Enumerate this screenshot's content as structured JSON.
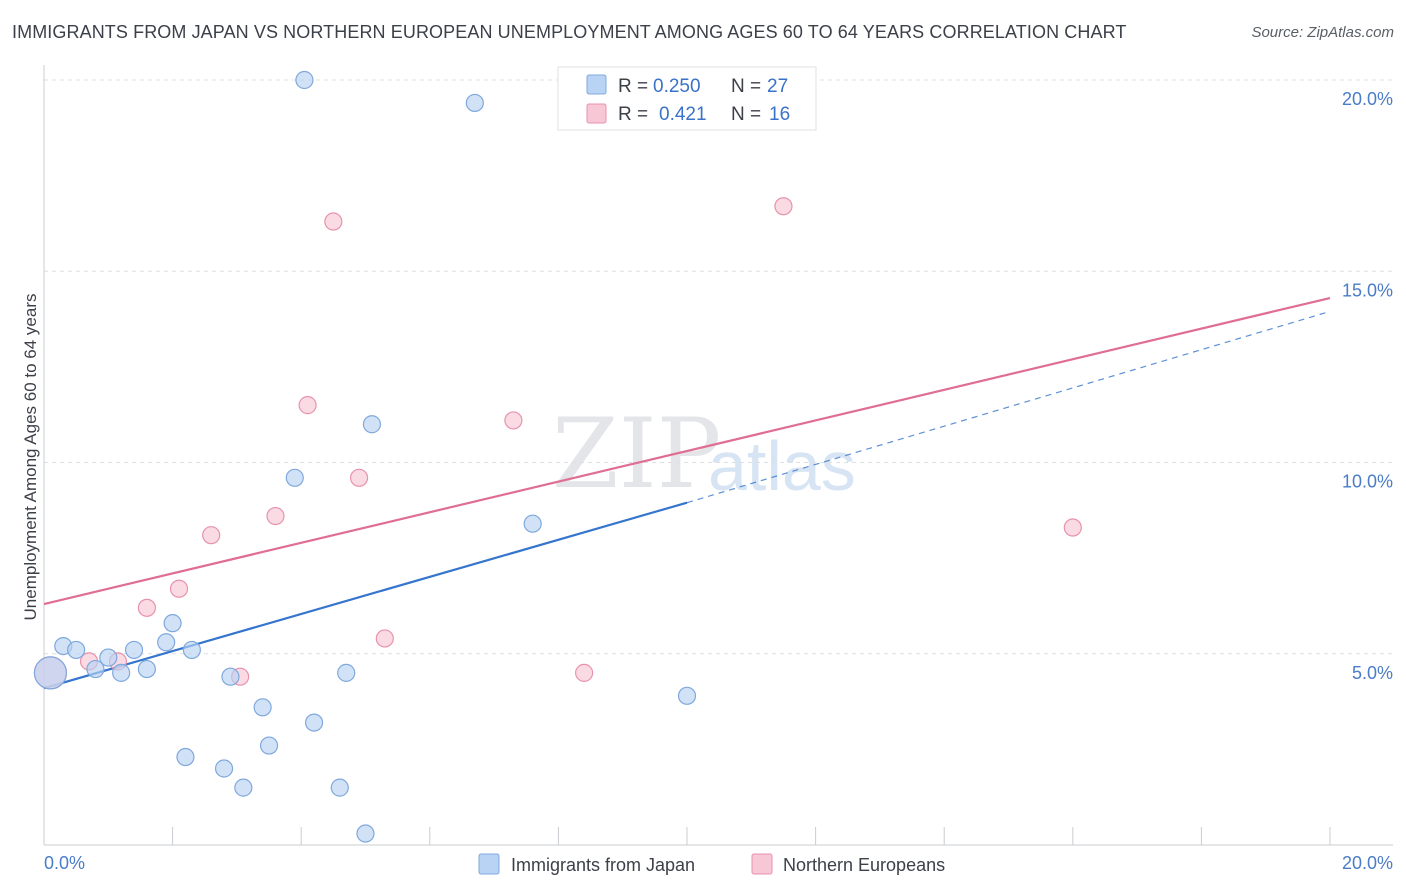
{
  "title": "IMMIGRANTS FROM JAPAN VS NORTHERN EUROPEAN UNEMPLOYMENT AMONG AGES 60 TO 64 YEARS CORRELATION CHART",
  "source": "Source: ZipAtlas.com",
  "watermark": {
    "zip": "ZIP",
    "atlas": "atlas"
  },
  "colors": {
    "blue_fill": "#b8d3f3",
    "blue_stroke": "#7fa8dc",
    "blue_line": "#3575cd",
    "pink_fill": "#f8c7d6",
    "pink_stroke": "#e892ad",
    "pink_line": "#e06e93"
  },
  "legend": {
    "items": [
      {
        "r_label": "R =",
        "r_value": "0.250",
        "n_label": "N =",
        "n_value": "27"
      },
      {
        "r_label": "R =",
        "r_value": "0.421",
        "n_label": "N =",
        "n_value": "16"
      }
    ]
  },
  "chart_data": {
    "type": "scatter",
    "title": "IMMIGRANTS FROM JAPAN VS NORTHERN EUROPEAN UNEMPLOYMENT AMONG AGES 60 TO 64 YEARS CORRELATION CHART",
    "xlabel": "",
    "ylabel": "Unemployment Among Ages 60 to 64 years",
    "xlim": [
      0,
      20
    ],
    "ylim": [
      0,
      20.5
    ],
    "x_tick_labels": [
      "0.0%",
      "20.0%"
    ],
    "y_ticks": [
      5,
      10,
      15,
      20
    ],
    "y_tick_labels": [
      "5.0%",
      "10.0%",
      "15.0%",
      "20.0%"
    ],
    "grid": true,
    "series": [
      {
        "name": "Immigrants from Japan",
        "r": 0.25,
        "n": 27,
        "trend": {
          "x0": 0,
          "y0": 4.1,
          "x1": 10,
          "y1": 8.95,
          "dashed_to_x": 20,
          "dashed_to_y": 13.95
        },
        "points": [
          {
            "x": 0.1,
            "y": 4.5,
            "big": true
          },
          {
            "x": 0.3,
            "y": 5.2
          },
          {
            "x": 0.5,
            "y": 5.1
          },
          {
            "x": 0.8,
            "y": 4.6
          },
          {
            "x": 1.0,
            "y": 4.9
          },
          {
            "x": 1.2,
            "y": 4.5
          },
          {
            "x": 1.4,
            "y": 5.1
          },
          {
            "x": 1.6,
            "y": 4.6
          },
          {
            "x": 1.9,
            "y": 5.3
          },
          {
            "x": 2.0,
            "y": 5.8
          },
          {
            "x": 2.3,
            "y": 5.1
          },
          {
            "x": 2.2,
            "y": 2.3
          },
          {
            "x": 2.8,
            "y": 2.0
          },
          {
            "x": 2.9,
            "y": 4.4
          },
          {
            "x": 3.1,
            "y": 1.5
          },
          {
            "x": 3.4,
            "y": 3.6
          },
          {
            "x": 3.5,
            "y": 2.6
          },
          {
            "x": 3.9,
            "y": 9.6
          },
          {
            "x": 4.05,
            "y": 20.0
          },
          {
            "x": 4.2,
            "y": 3.2
          },
          {
            "x": 4.6,
            "y": 1.5
          },
          {
            "x": 4.7,
            "y": 4.5
          },
          {
            "x": 5.0,
            "y": 0.3
          },
          {
            "x": 5.1,
            "y": 11.0
          },
          {
            "x": 6.7,
            "y": 19.4
          },
          {
            "x": 7.6,
            "y": 8.4
          },
          {
            "x": 10.0,
            "y": 3.9
          }
        ]
      },
      {
        "name": "Northern Europeans",
        "r": 0.421,
        "n": 16,
        "trend": {
          "x0": 0,
          "y0": 6.3,
          "x1": 20,
          "y1": 14.3
        },
        "points": [
          {
            "x": 0.1,
            "y": 4.5,
            "big": true
          },
          {
            "x": 0.7,
            "y": 4.8
          },
          {
            "x": 1.15,
            "y": 4.8
          },
          {
            "x": 1.6,
            "y": 6.2
          },
          {
            "x": 2.1,
            "y": 6.7
          },
          {
            "x": 2.6,
            "y": 8.1
          },
          {
            "x": 3.05,
            "y": 4.4
          },
          {
            "x": 3.6,
            "y": 8.6
          },
          {
            "x": 4.1,
            "y": 11.5
          },
          {
            "x": 4.5,
            "y": 16.3
          },
          {
            "x": 4.9,
            "y": 9.6
          },
          {
            "x": 5.3,
            "y": 5.4
          },
          {
            "x": 7.3,
            "y": 11.1
          },
          {
            "x": 8.4,
            "y": 4.5
          },
          {
            "x": 11.5,
            "y": 16.7
          },
          {
            "x": 16.0,
            "y": 8.3
          }
        ]
      }
    ],
    "legend_position": "top-center"
  }
}
